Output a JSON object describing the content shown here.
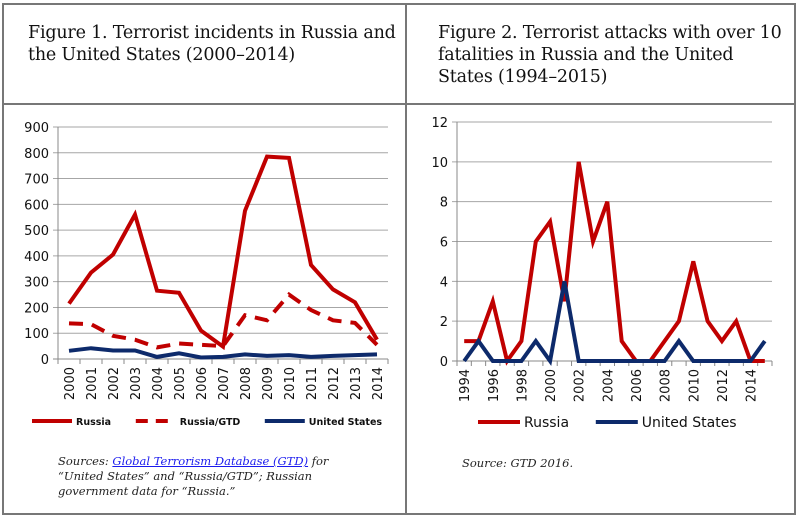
{
  "colors": {
    "russia": "#c00000",
    "us": "#0d2a6b",
    "grid": "#a6a6a6",
    "axis": "#888888"
  },
  "chart_data": [
    {
      "type": "line",
      "title": "Figure 1.  Terrorist incidents in Russia and the United States (2000–2014)",
      "xlabel": "",
      "ylabel": "",
      "ylim": [
        0,
        900
      ],
      "yticks": [
        "0",
        "100",
        "200",
        "300",
        "400",
        "500",
        "600",
        "700",
        "800",
        "900"
      ],
      "grid": true,
      "legend_position": "bottom",
      "x": [
        "2000",
        "2001",
        "2002",
        "2003",
        "2004",
        "2005",
        "2006",
        "2007",
        "2008",
        "2009",
        "2010",
        "2011",
        "2012",
        "2013",
        "2014"
      ],
      "series": [
        {
          "name": "Russia",
          "style": "solid",
          "color": "#c00000",
          "values": [
            215,
            335,
            405,
            560,
            265,
            257,
            110,
            48,
            575,
            785,
            780,
            365,
            270,
            220,
            75
          ]
        },
        {
          "name": "Russia/GTD",
          "style": "dashed",
          "color": "#c00000",
          "values": [
            138,
            135,
            90,
            75,
            45,
            60,
            55,
            50,
            170,
            150,
            250,
            190,
            150,
            140,
            55
          ]
        },
        {
          "name": "United States",
          "style": "solid",
          "color": "#0d2a6b",
          "values": [
            32,
            42,
            33,
            33,
            8,
            22,
            6,
            8,
            18,
            12,
            15,
            8,
            12,
            15,
            18
          ]
        }
      ],
      "source": {
        "prefix": "Sources: ",
        "link_text": "Global Terrorism Database (GTD)",
        "suffix": " for “United States” and “Russia/GTD”;  Russian government data for “Russia.”"
      }
    },
    {
      "type": "line",
      "title": "Figure 2.  Terrorist attacks with over 10 fatalities in Russia and the United States (1994–2015)",
      "xlabel": "",
      "ylabel": "",
      "ylim": [
        0,
        12
      ],
      "yticks": [
        "0",
        "2",
        "4",
        "6",
        "8",
        "10",
        "12"
      ],
      "grid": true,
      "legend_position": "bottom",
      "x": [
        "1994",
        "1995",
        "1996",
        "1997",
        "1998",
        "1999",
        "2000",
        "2001",
        "2002",
        "2003",
        "2004",
        "2005",
        "2006",
        "2007",
        "2008",
        "2009",
        "2010",
        "2011",
        "2012",
        "2013",
        "2014",
        "2015"
      ],
      "x_tick_labels_shown": [
        "1994",
        "1996",
        "1998",
        "2000",
        "2002",
        "2004",
        "2006",
        "2008",
        "2010",
        "2012",
        "2014"
      ],
      "series": [
        {
          "name": "Russia",
          "style": "solid",
          "color": "#c00000",
          "values": [
            1,
            1,
            3,
            0,
            1,
            6,
            7,
            3,
            10,
            6,
            8,
            1,
            0,
            0,
            1,
            2,
            5,
            2,
            1,
            2,
            0,
            0
          ]
        },
        {
          "name": "United States",
          "style": "solid",
          "color": "#0d2a6b",
          "values": [
            0,
            1,
            0,
            0,
            0,
            1,
            0,
            4,
            0,
            0,
            0,
            0,
            0,
            0,
            0,
            1,
            0,
            0,
            0,
            0,
            0,
            1
          ]
        }
      ],
      "source": {
        "text": "Source: GTD 2016."
      }
    }
  ]
}
